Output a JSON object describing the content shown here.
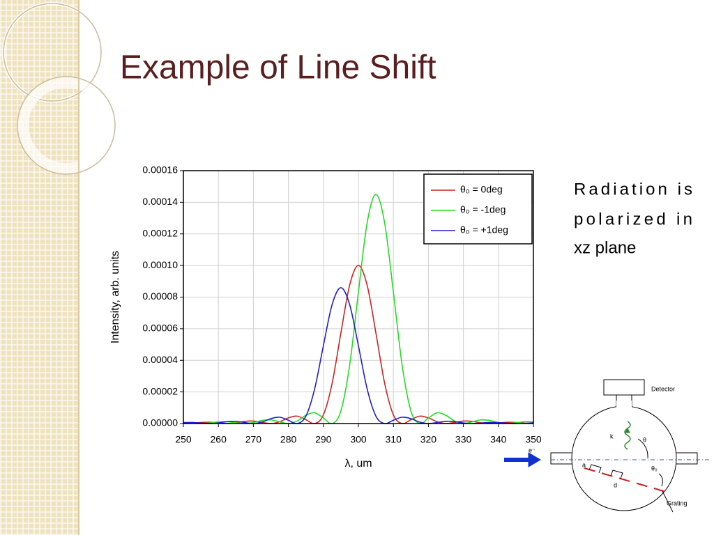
{
  "slide": {
    "title": "Example of Line Shift",
    "text_lines": [
      "Radiation is",
      "polarized in",
      "xz plane"
    ]
  },
  "chart_data": {
    "type": "line",
    "xlabel": "λ, um",
    "ylabel": "Intensity, arb. units",
    "x": [
      250,
      252.5,
      255,
      257.5,
      260,
      262.5,
      265,
      267.5,
      270,
      272.5,
      275,
      277.5,
      280,
      282.5,
      285,
      287.5,
      290,
      292.5,
      295,
      297.5,
      300,
      302.5,
      305,
      307.5,
      310,
      312.5,
      315,
      317.5,
      320,
      322.5,
      325,
      327.5,
      330,
      332.5,
      335,
      337.5,
      340,
      342.5,
      345,
      347.5,
      350
    ],
    "series": [
      {
        "name": "θ₀ = 0deg",
        "color": "#d42020",
        "values": [
          0,
          2.4e-07,
          7.1e-07,
          7.9e-07,
          3.4e-07,
          0,
          4.5e-07,
          1.36e-06,
          1.59e-06,
          7.2e-07,
          0,
          1.08e-06,
          3.58e-06,
          4.68e-06,
          2.43e-06,
          0,
          5.47e-06,
          2.546e-05,
          5.729e-05,
          8.751e-05,
          0.0001,
          8.751e-05,
          5.729e-05,
          2.546e-05,
          5.47e-06,
          0,
          2.43e-06,
          4.68e-06,
          3.58e-06,
          1.08e-06,
          0,
          7.2e-07,
          1.59e-06,
          1.36e-06,
          4.5e-07,
          0,
          3.4e-07,
          7.9e-07,
          7.1e-07,
          2.4e-07,
          0
        ]
      },
      {
        "name": "θ₀ = -1deg",
        "color": "#22dd22",
        "values": [
          6.8e-07,
          2.9e-07,
          0,
          3.5e-07,
          1.03e-06,
          1.15e-06,
          4.9e-07,
          0,
          6.5e-07,
          1.97e-06,
          2.31e-06,
          1.04e-06,
          0,
          1.57e-06,
          5.19e-06,
          6.79e-06,
          3.52e-06,
          0,
          7.93e-06,
          3.69e-05,
          8.31e-05,
          0.0001269,
          0.000145,
          0.0001269,
          8.31e-05,
          3.69e-05,
          7.93e-06,
          0,
          3.52e-06,
          6.79e-06,
          5.19e-06,
          1.57e-06,
          0,
          1.04e-06,
          2.31e-06,
          1.97e-06,
          6.5e-07,
          0,
          4.9e-07,
          1.15e-06,
          1.03e-06
        ]
      },
      {
        "name": "θ₀ = +1deg",
        "color": "#2020c8",
        "values": [
          6.1e-07,
          6.8e-07,
          2.9e-07,
          0,
          3.9e-07,
          1.17e-06,
          1.37e-06,
          6.2e-07,
          0,
          9.3e-07,
          3.08e-06,
          4.02e-06,
          2.09e-06,
          0,
          4.7e-06,
          2.19e-05,
          4.93e-05,
          7.53e-05,
          8.6e-05,
          7.53e-05,
          4.93e-05,
          2.19e-05,
          4.7e-06,
          0,
          2.09e-06,
          4.02e-06,
          3.08e-06,
          9.3e-07,
          0,
          6.2e-07,
          1.37e-06,
          1.17e-06,
          3.9e-07,
          0,
          2.9e-07,
          6.8e-07,
          6.1e-07,
          2.1e-07,
          0,
          1.7e-07,
          4e-07
        ]
      }
    ],
    "xlim": [
      250,
      350
    ],
    "xticks": [
      250,
      260,
      270,
      280,
      290,
      300,
      310,
      320,
      330,
      340,
      350
    ],
    "ylim": [
      0,
      0.00016
    ],
    "yticks": [
      {
        "value": 0,
        "label": "0.00000"
      },
      2e-05,
      4e-05,
      6e-05,
      8e-05,
      {
        "value": 0.0001,
        "label": "0.00010"
      },
      0.00012,
      0.00014,
      0.00016
    ],
    "grid": true,
    "legend": "upper right"
  },
  "diagram": {
    "labels": {
      "detector": "Detector",
      "k": "k",
      "theta": "θ",
      "electron": "e⁻",
      "a": "a",
      "d": "d",
      "theta0": "θ₀",
      "grating": "Grating"
    }
  }
}
